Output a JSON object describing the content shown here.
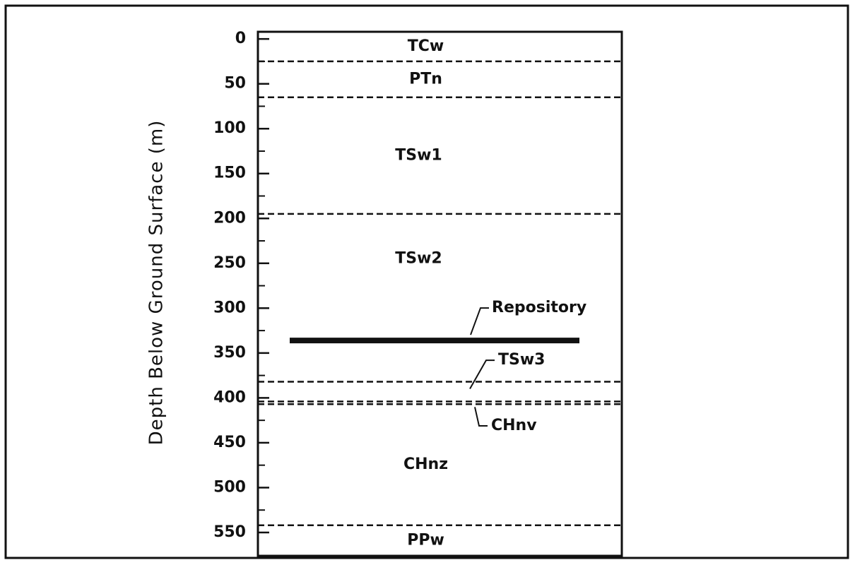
{
  "chart_data": {
    "type": "strata",
    "y_label": "Depth Below Ground Surface (m)",
    "ylim": [
      -8,
      576
    ],
    "yticks": [
      0,
      50,
      100,
      150,
      200,
      250,
      300,
      350,
      400,
      450,
      500,
      550
    ],
    "yminorticks": [
      25,
      75,
      125,
      175,
      225,
      275,
      325,
      375,
      425,
      475,
      525
    ],
    "inverted": true,
    "units": [
      "TCw",
      "PTn",
      "TSw1",
      "TSw2",
      "TSw3",
      "CHnv",
      "CHnz",
      "PPw"
    ],
    "boundaries": [
      25,
      65,
      195,
      382,
      404,
      407,
      542
    ],
    "repository": {
      "label": "Repository",
      "depth": 336
    },
    "color": "#111111"
  }
}
